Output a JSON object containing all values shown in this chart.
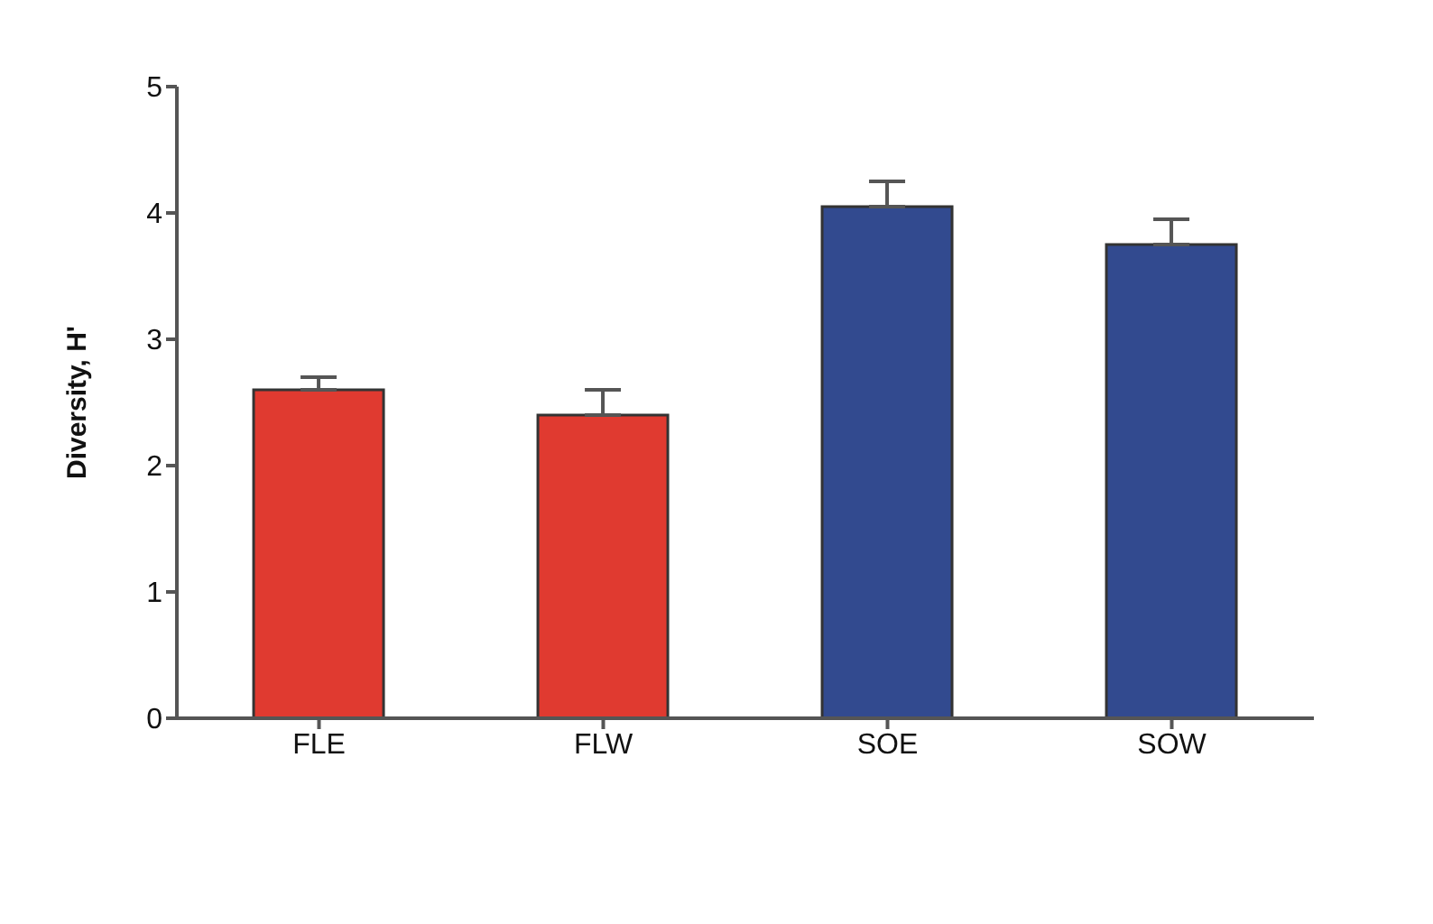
{
  "chart_data": {
    "type": "bar",
    "ylabel": "Diversity, H'",
    "categories": [
      "FLE",
      "FLW",
      "SOE",
      "SOW"
    ],
    "values": [
      2.6,
      2.4,
      4.05,
      3.75
    ],
    "colors": [
      "#e03a30",
      "#e03a30",
      "#324a8f",
      "#324a8f"
    ],
    "errors": [
      [
        2.6,
        2.7
      ],
      [
        2.4,
        2.6
      ],
      [
        4.05,
        4.25
      ],
      [
        3.75,
        3.95
      ]
    ],
    "ylim": [
      0,
      5
    ],
    "yticks": [
      0,
      1,
      2,
      3,
      4,
      5
    ],
    "grid": false,
    "legend": false
  }
}
